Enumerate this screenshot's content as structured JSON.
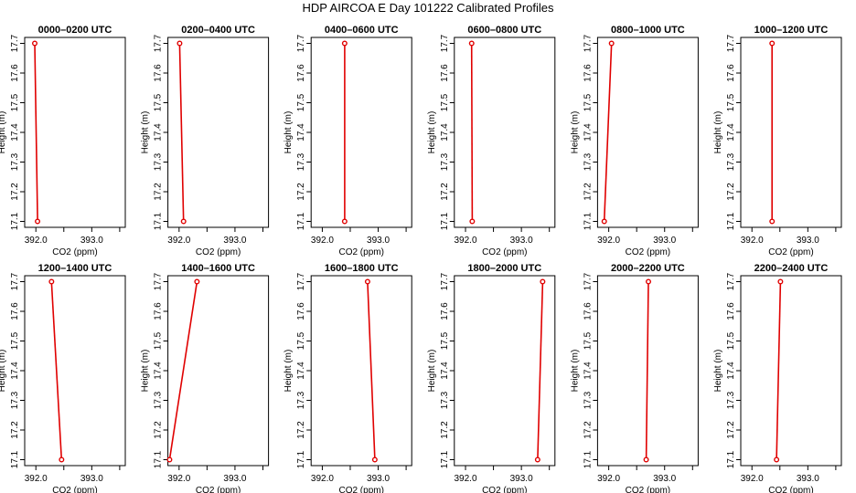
{
  "page": {
    "title": "HDP AIRCOA E  Day 101222  Calibrated Profiles"
  },
  "colors": {
    "profile": "#e00000",
    "axis": "#000000"
  },
  "chart_data": [
    {
      "type": "line",
      "title": "0000–0200 UTC",
      "xlabel": "CO2 (ppm)",
      "ylabel": "Height (m)",
      "xlim": [
        391.8,
        393.6
      ],
      "ylim": [
        17.08,
        17.72
      ],
      "xticks": [
        "392.0",
        "393.0"
      ],
      "yticks": [
        "17.1",
        "17.2",
        "17.3",
        "17.4",
        "17.5",
        "17.6",
        "17.7"
      ],
      "series": [
        {
          "x": [
            392.03,
            391.98
          ],
          "y": [
            17.1,
            17.7
          ]
        }
      ]
    },
    {
      "type": "line",
      "title": "0200–0400 UTC",
      "xlabel": "CO2 (ppm)",
      "ylabel": "Height (m)",
      "xlim": [
        391.8,
        393.6
      ],
      "ylim": [
        17.08,
        17.72
      ],
      "xticks": [
        "392.0",
        "393.0"
      ],
      "yticks": [
        "17.1",
        "17.2",
        "17.3",
        "17.4",
        "17.5",
        "17.6",
        "17.7"
      ],
      "series": [
        {
          "x": [
            392.08,
            392.01
          ],
          "y": [
            17.1,
            17.7
          ]
        }
      ]
    },
    {
      "type": "line",
      "title": "0400–0600 UTC",
      "xlabel": "CO2 (ppm)",
      "ylabel": "Height (m)",
      "xlim": [
        391.8,
        393.6
      ],
      "ylim": [
        17.08,
        17.72
      ],
      "xticks": [
        "392.0",
        "393.0"
      ],
      "yticks": [
        "17.1",
        "17.2",
        "17.3",
        "17.4",
        "17.5",
        "17.6",
        "17.7"
      ],
      "series": [
        {
          "x": [
            392.4,
            392.4
          ],
          "y": [
            17.1,
            17.7
          ]
        }
      ]
    },
    {
      "type": "line",
      "title": "0600–0800 UTC",
      "xlabel": "CO2 (ppm)",
      "ylabel": "Height (m)",
      "xlim": [
        391.8,
        393.6
      ],
      "ylim": [
        17.08,
        17.72
      ],
      "xticks": [
        "392.0",
        "393.0"
      ],
      "yticks": [
        "17.1",
        "17.2",
        "17.3",
        "17.4",
        "17.5",
        "17.6",
        "17.7"
      ],
      "series": [
        {
          "x": [
            392.12,
            392.11
          ],
          "y": [
            17.1,
            17.7
          ]
        }
      ]
    },
    {
      "type": "line",
      "title": "0800–1000 UTC",
      "xlabel": "CO2 (ppm)",
      "ylabel": "Height (m)",
      "xlim": [
        391.8,
        393.6
      ],
      "ylim": [
        17.08,
        17.72
      ],
      "xticks": [
        "392.0",
        "393.0"
      ],
      "yticks": [
        "17.1",
        "17.2",
        "17.3",
        "17.4",
        "17.5",
        "17.6",
        "17.7"
      ],
      "series": [
        {
          "x": [
            391.92,
            392.05
          ],
          "y": [
            17.1,
            17.7
          ]
        }
      ]
    },
    {
      "type": "line",
      "title": "1000–1200 UTC",
      "xlabel": "CO2 (ppm)",
      "ylabel": "Height (m)",
      "xlim": [
        391.8,
        393.6
      ],
      "ylim": [
        17.08,
        17.72
      ],
      "xticks": [
        "392.0",
        "393.0"
      ],
      "yticks": [
        "17.1",
        "17.2",
        "17.3",
        "17.4",
        "17.5",
        "17.6",
        "17.7"
      ],
      "series": [
        {
          "x": [
            392.36,
            392.36
          ],
          "y": [
            17.1,
            17.7
          ]
        }
      ]
    },
    {
      "type": "line",
      "title": "1200–1400 UTC",
      "xlabel": "CO2 (ppm)",
      "ylabel": "Height (m)",
      "xlim": [
        391.8,
        393.6
      ],
      "ylim": [
        17.08,
        17.72
      ],
      "xticks": [
        "392.0",
        "393.0"
      ],
      "yticks": [
        "17.1",
        "17.2",
        "17.3",
        "17.4",
        "17.5",
        "17.6",
        "17.7"
      ],
      "series": [
        {
          "x": [
            392.46,
            392.28
          ],
          "y": [
            17.1,
            17.7
          ]
        }
      ]
    },
    {
      "type": "line",
      "title": "1400–1600 UTC",
      "xlabel": "CO2 (ppm)",
      "ylabel": "Height (m)",
      "xlim": [
        391.8,
        393.6
      ],
      "ylim": [
        17.08,
        17.72
      ],
      "xticks": [
        "392.0",
        "393.0"
      ],
      "yticks": [
        "17.1",
        "17.2",
        "17.3",
        "17.4",
        "17.5",
        "17.6",
        "17.7"
      ],
      "series": [
        {
          "x": [
            391.83,
            392.32
          ],
          "y": [
            17.1,
            17.7
          ]
        }
      ]
    },
    {
      "type": "line",
      "title": "1600–1800 UTC",
      "xlabel": "CO2 (ppm)",
      "ylabel": "Height (m)",
      "xlim": [
        391.8,
        393.6
      ],
      "ylim": [
        17.08,
        17.72
      ],
      "xticks": [
        "392.0",
        "393.0"
      ],
      "yticks": [
        "17.1",
        "17.2",
        "17.3",
        "17.4",
        "17.5",
        "17.6",
        "17.7"
      ],
      "series": [
        {
          "x": [
            392.94,
            392.81
          ],
          "y": [
            17.1,
            17.7
          ]
        }
      ]
    },
    {
      "type": "line",
      "title": "1800–2000 UTC",
      "xlabel": "CO2 (ppm)",
      "ylabel": "Height (m)",
      "xlim": [
        391.8,
        393.6
      ],
      "ylim": [
        17.08,
        17.72
      ],
      "xticks": [
        "392.0",
        "393.0"
      ],
      "yticks": [
        "17.1",
        "17.2",
        "17.3",
        "17.4",
        "17.5",
        "17.6",
        "17.7"
      ],
      "series": [
        {
          "x": [
            393.29,
            393.38
          ],
          "y": [
            17.1,
            17.7
          ]
        }
      ]
    },
    {
      "type": "line",
      "title": "2000–2200 UTC",
      "xlabel": "CO2 (ppm)",
      "ylabel": "Height (m)",
      "xlim": [
        391.8,
        393.6
      ],
      "ylim": [
        17.08,
        17.72
      ],
      "xticks": [
        "392.0",
        "393.0"
      ],
      "yticks": [
        "17.1",
        "17.2",
        "17.3",
        "17.4",
        "17.5",
        "17.6",
        "17.7"
      ],
      "series": [
        {
          "x": [
            392.67,
            392.71
          ],
          "y": [
            17.1,
            17.7
          ]
        }
      ]
    },
    {
      "type": "line",
      "title": "2200–2400 UTC",
      "xlabel": "CO2 (ppm)",
      "ylabel": "Height (m)",
      "xlim": [
        391.8,
        393.6
      ],
      "ylim": [
        17.08,
        17.72
      ],
      "xticks": [
        "392.0",
        "393.0"
      ],
      "yticks": [
        "17.1",
        "17.2",
        "17.3",
        "17.4",
        "17.5",
        "17.6",
        "17.7"
      ],
      "series": [
        {
          "x": [
            392.44,
            392.51
          ],
          "y": [
            17.1,
            17.7
          ]
        }
      ]
    }
  ]
}
